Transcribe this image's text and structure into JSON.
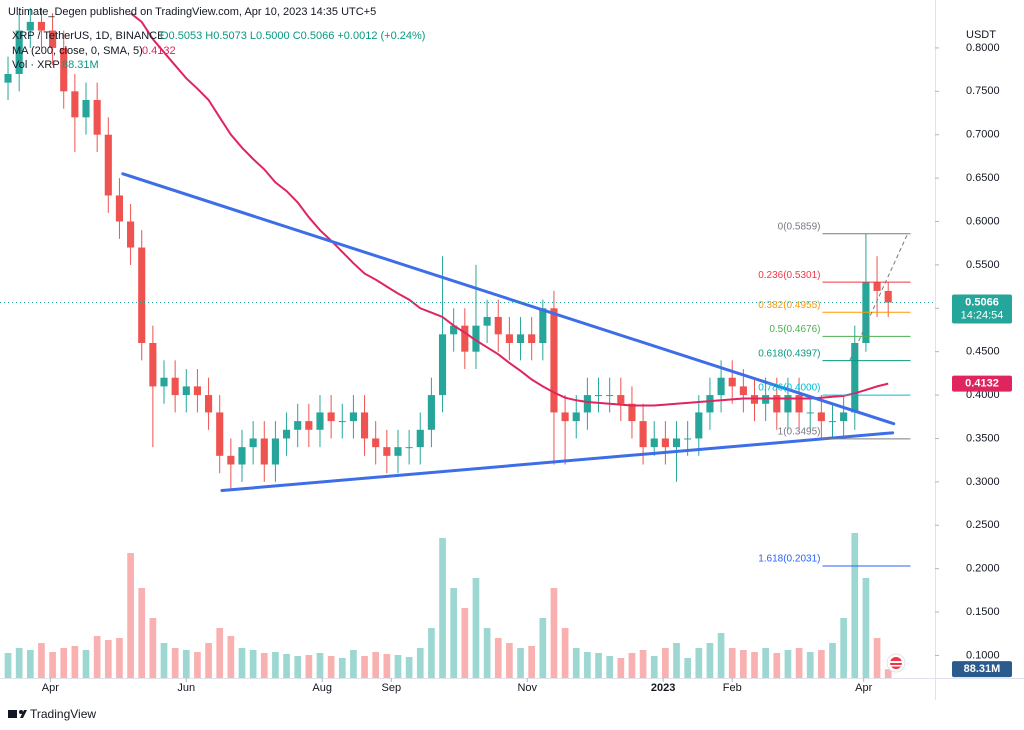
{
  "header": {
    "published": "Ultimate_Degen published on TradingView.com, Apr 10, 2023 14:35 UTC+5"
  },
  "chart_data": {
    "type": "candlestick",
    "symbol": "XRP / TetherUS, 1D, BINANCE",
    "ohlc_text": "O0.5053 H0.5073 L0.5000 C0.5066 +0.0012 (+0.24%)",
    "currency": "USDT",
    "up_color": "#26a69a",
    "down_color": "#ef5350",
    "open": [
      0.76,
      0.77,
      0.82,
      0.83,
      0.82,
      0.8,
      0.75,
      0.72,
      0.74,
      0.7,
      0.63,
      0.6,
      0.57,
      0.46,
      0.41,
      0.42,
      0.4,
      0.41,
      0.4,
      0.38,
      0.33,
      0.32,
      0.34,
      0.35,
      0.32,
      0.35,
      0.36,
      0.37,
      0.36,
      0.38,
      0.37,
      0.37,
      0.38,
      0.35,
      0.34,
      0.33,
      0.34,
      0.34,
      0.36,
      0.4,
      0.47,
      0.48,
      0.45,
      0.48,
      0.49,
      0.47,
      0.46,
      0.47,
      0.46,
      0.5,
      0.38,
      0.37,
      0.38,
      0.4,
      0.4,
      0.4,
      0.39,
      0.37,
      0.34,
      0.35,
      0.34,
      0.35,
      0.35,
      0.38,
      0.4,
      0.42,
      0.41,
      0.4,
      0.39,
      0.4,
      0.38,
      0.4,
      0.38,
      0.38,
      0.37,
      0.37,
      0.38,
      0.46,
      0.53,
      0.52
    ],
    "high": [
      0.79,
      0.84,
      0.85,
      0.85,
      0.84,
      0.82,
      0.77,
      0.76,
      0.76,
      0.72,
      0.65,
      0.62,
      0.59,
      0.48,
      0.44,
      0.44,
      0.43,
      0.43,
      0.42,
      0.4,
      0.35,
      0.36,
      0.37,
      0.37,
      0.37,
      0.38,
      0.39,
      0.39,
      0.4,
      0.4,
      0.39,
      0.4,
      0.4,
      0.37,
      0.36,
      0.36,
      0.36,
      0.38,
      0.42,
      0.56,
      0.5,
      0.5,
      0.55,
      0.51,
      0.51,
      0.49,
      0.49,
      0.49,
      0.51,
      0.52,
      0.4,
      0.4,
      0.42,
      0.42,
      0.42,
      0.42,
      0.41,
      0.39,
      0.37,
      0.37,
      0.37,
      0.37,
      0.4,
      0.42,
      0.44,
      0.44,
      0.43,
      0.42,
      0.42,
      0.42,
      0.42,
      0.42,
      0.4,
      0.4,
      0.39,
      0.4,
      0.48,
      0.5859,
      0.56,
      0.53
    ],
    "low": [
      0.74,
      0.75,
      0.8,
      0.8,
      0.78,
      0.73,
      0.68,
      0.7,
      0.68,
      0.61,
      0.58,
      0.55,
      0.44,
      0.34,
      0.39,
      0.38,
      0.38,
      0.38,
      0.36,
      0.31,
      0.29,
      0.3,
      0.32,
      0.3,
      0.3,
      0.33,
      0.34,
      0.34,
      0.34,
      0.35,
      0.35,
      0.35,
      0.33,
      0.32,
      0.31,
      0.31,
      0.32,
      0.32,
      0.34,
      0.38,
      0.45,
      0.43,
      0.43,
      0.46,
      0.45,
      0.44,
      0.44,
      0.44,
      0.44,
      0.32,
      0.32,
      0.35,
      0.36,
      0.38,
      0.38,
      0.37,
      0.35,
      0.32,
      0.33,
      0.32,
      0.3,
      0.33,
      0.33,
      0.36,
      0.38,
      0.39,
      0.38,
      0.37,
      0.37,
      0.36,
      0.36,
      0.36,
      0.36,
      0.35,
      0.35,
      0.3495,
      0.36,
      0.45,
      0.49,
      0.49
    ],
    "close": [
      0.77,
      0.82,
      0.83,
      0.82,
      0.8,
      0.75,
      0.72,
      0.74,
      0.7,
      0.63,
      0.6,
      0.57,
      0.46,
      0.41,
      0.42,
      0.4,
      0.41,
      0.4,
      0.38,
      0.33,
      0.32,
      0.34,
      0.35,
      0.32,
      0.35,
      0.36,
      0.37,
      0.36,
      0.38,
      0.37,
      0.37,
      0.38,
      0.35,
      0.34,
      0.33,
      0.34,
      0.34,
      0.36,
      0.4,
      0.47,
      0.48,
      0.45,
      0.48,
      0.49,
      0.47,
      0.46,
      0.47,
      0.46,
      0.5,
      0.38,
      0.37,
      0.38,
      0.4,
      0.4,
      0.4,
      0.39,
      0.37,
      0.34,
      0.35,
      0.34,
      0.35,
      0.35,
      0.38,
      0.4,
      0.42,
      0.41,
      0.4,
      0.39,
      0.4,
      0.38,
      0.4,
      0.38,
      0.38,
      0.37,
      0.37,
      0.38,
      0.46,
      0.53,
      0.52,
      0.5066
    ],
    "xlim": [
      -0.72,
      83.2
    ],
    "xticks": [
      {
        "value": 3.8,
        "label": "Apr"
      },
      {
        "value": 16,
        "label": "Jun"
      },
      {
        "value": 28.2,
        "label": "Aug"
      },
      {
        "value": 34.4,
        "label": "Sep"
      },
      {
        "value": 46.6,
        "label": "Nov"
      },
      {
        "value": 58.8,
        "label": "2023"
      },
      {
        "value": 65,
        "label": "Feb"
      },
      {
        "value": 76.8,
        "label": "Apr"
      }
    ],
    "ylim": [
      0.074,
      0.846
    ],
    "yticks": [
      {
        "value": 0.1,
        "label": "0.1000"
      },
      {
        "value": 0.15,
        "label": "0.1500"
      },
      {
        "value": 0.2,
        "label": "0.2000"
      },
      {
        "value": 0.25,
        "label": "0.2500"
      },
      {
        "value": 0.3,
        "label": "0.3000"
      },
      {
        "value": 0.35,
        "label": "0.3500"
      },
      {
        "value": 0.4,
        "label": "0.4000"
      },
      {
        "value": 0.45,
        "label": "0.4500"
      },
      {
        "value": 0.5,
        "label": "0.5000"
      },
      {
        "value": 0.55,
        "label": "0.5500"
      },
      {
        "value": 0.6,
        "label": "0.6000"
      },
      {
        "value": 0.65,
        "label": "0.6500"
      },
      {
        "value": 0.7,
        "label": "0.7000"
      },
      {
        "value": 0.75,
        "label": "0.7500"
      },
      {
        "value": 0.8,
        "label": "0.8000"
      }
    ],
    "grid": false,
    "last_price": 0.5066,
    "countdown": "14:24:54",
    "ma": {
      "name": "MA (200, close, 0, SMA, 5)",
      "color": "#e0245e",
      "last": 0.4132,
      "values": [
        null,
        null,
        null,
        null,
        null,
        null,
        null,
        null,
        null,
        null,
        null,
        0.84,
        0.83,
        0.81,
        0.795,
        0.78,
        0.765,
        0.753,
        0.74,
        0.72,
        0.7,
        0.685,
        0.672,
        0.66,
        0.645,
        0.635,
        0.622,
        0.605,
        0.59,
        0.578,
        0.565,
        0.552,
        0.54,
        0.533,
        0.525,
        0.517,
        0.51,
        0.5,
        0.495,
        0.49,
        0.48,
        0.472,
        0.463,
        0.455,
        0.447,
        0.437,
        0.428,
        0.418,
        0.41,
        0.403,
        0.397,
        0.394,
        0.392,
        0.391,
        0.39,
        0.389,
        0.388,
        0.388,
        0.388,
        0.389,
        0.39,
        0.391,
        0.392,
        0.393,
        0.394,
        0.395,
        0.396,
        0.396,
        0.396,
        0.396,
        0.396,
        0.396,
        0.396,
        0.397,
        0.398,
        0.399,
        0.402,
        0.406,
        0.41,
        0.4132
      ]
    },
    "volume": {
      "name": "Vol · XRP",
      "ylim": [
        0,
        6700
      ],
      "last_label": "88.31M",
      "color": "#2a5b8c",
      "values": [
        250,
        300,
        280,
        350,
        260,
        300,
        320,
        280,
        420,
        380,
        400,
        1250,
        900,
        600,
        350,
        300,
        280,
        260,
        350,
        500,
        420,
        300,
        280,
        250,
        260,
        240,
        220,
        230,
        250,
        220,
        200,
        280,
        220,
        260,
        240,
        230,
        210,
        300,
        500,
        1400,
        900,
        700,
        1000,
        500,
        400,
        350,
        300,
        320,
        600,
        900,
        500,
        300,
        260,
        250,
        220,
        200,
        250,
        280,
        220,
        300,
        350,
        200,
        300,
        350,
        450,
        300,
        280,
        260,
        300,
        250,
        280,
        300,
        260,
        280,
        350,
        600,
        1450,
        1000,
        400,
        88.31
      ]
    },
    "trendline_color": "#3d6ee8",
    "trendlines": [
      {
        "x": [
          10.3,
          79.5
        ],
        "y": [
          0.655,
          0.367
        ]
      },
      {
        "x": [
          19.2,
          79.4
        ],
        "y": [
          0.29,
          0.3565
        ]
      }
    ],
    "fib_x": [
      73.1,
      81
    ],
    "fib": [
      {
        "label": "0(0.5859)",
        "value": 0.5859,
        "color": "#787b86"
      },
      {
        "label": "0.236(0.5301)",
        "value": 0.5301,
        "color": "#f23645"
      },
      {
        "label": "0.382(0.4955)",
        "value": 0.4955,
        "color": "#ff9800"
      },
      {
        "label": "0.5(0.4676)",
        "value": 0.4676,
        "color": "#4caf50"
      },
      {
        "label": "0.618(0.4397)",
        "value": 0.4397,
        "color": "#089981"
      },
      {
        "label": "0.786(0.4000)",
        "value": 0.4,
        "color": "#00bcd4"
      },
      {
        "label": "1(0.3495)",
        "value": 0.3495,
        "color": "#787b86"
      },
      {
        "label": "1.618(0.2031)",
        "value": 0.2031,
        "color": "#2962ff"
      }
    ]
  },
  "footer": {
    "brand": "TradingView"
  }
}
